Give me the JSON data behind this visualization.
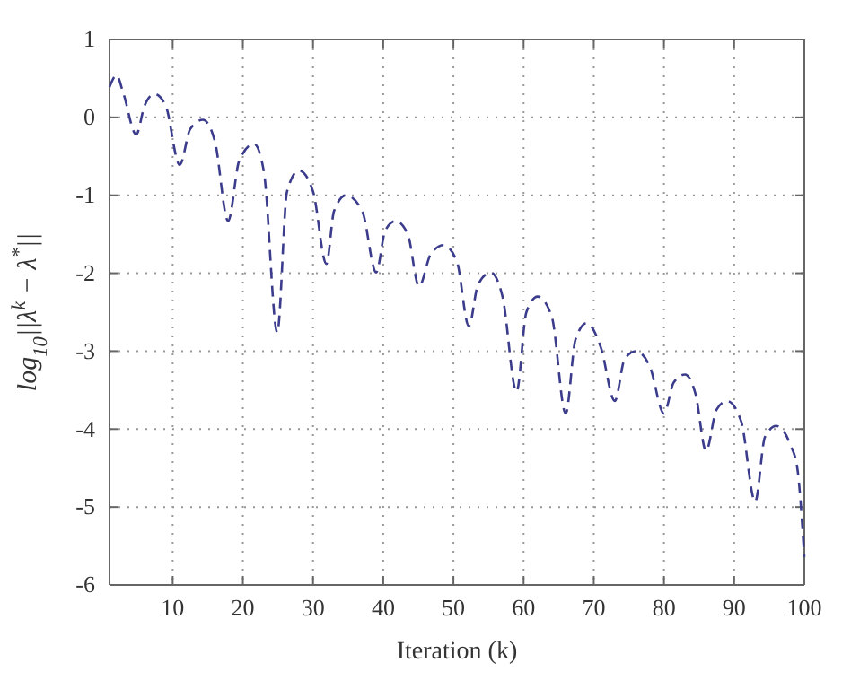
{
  "chart_data": {
    "type": "line",
    "xlabel": "Iteration (k)",
    "ylabel": "log$_{10}$||λ$^{k}$ − λ$^{*}$||",
    "xlim": [
      1,
      100
    ],
    "xticks": [
      10,
      20,
      30,
      40,
      50,
      60,
      70,
      80,
      90,
      100
    ],
    "ylim": [
      -6,
      1
    ],
    "yticks": [
      -6,
      -5,
      -4,
      -3,
      -2,
      -1,
      0,
      1
    ],
    "grid": true,
    "line_style": "dashed",
    "marker": "none",
    "series": [
      {
        "color": "#3c3c8c",
        "x": [
          1,
          2,
          3,
          4.8,
          6,
          7.4,
          9,
          11,
          12.5,
          14.3,
          16,
          17.9,
          19.5,
          21.6,
          23,
          24.9,
          26.3,
          28,
          30,
          31.9,
          33,
          34.7,
          37,
          39,
          40.3,
          41.8,
          43.5,
          45.1,
          46.8,
          48.6,
          50.5,
          52.2,
          53.5,
          55.3,
          57,
          59,
          60.4,
          62,
          64,
          66,
          67.4,
          69,
          71,
          73,
          74.4,
          76,
          78,
          80,
          81.4,
          83,
          84.5,
          86,
          87.5,
          89,
          91,
          93,
          94.4,
          96,
          98,
          99,
          100
        ],
        "values": [
          0.39,
          0.54,
          0.3,
          -0.22,
          0.15,
          0.3,
          0.15,
          -0.61,
          -0.15,
          -0.03,
          -0.3,
          -1.33,
          -0.55,
          -0.34,
          -0.7,
          -2.76,
          -0.95,
          -0.68,
          -0.95,
          -1.88,
          -1.2,
          -1.0,
          -1.2,
          -1.99,
          -1.45,
          -1.33,
          -1.5,
          -2.17,
          -1.75,
          -1.64,
          -1.85,
          -2.68,
          -2.15,
          -1.99,
          -2.3,
          -3.52,
          -2.5,
          -2.3,
          -2.55,
          -3.8,
          -2.85,
          -2.64,
          -2.95,
          -3.64,
          -3.1,
          -3.0,
          -3.2,
          -3.8,
          -3.4,
          -3.3,
          -3.55,
          -4.28,
          -3.75,
          -3.64,
          -3.9,
          -4.93,
          -4.1,
          -3.96,
          -4.2,
          -4.5,
          -5.64
        ]
      }
    ]
  }
}
